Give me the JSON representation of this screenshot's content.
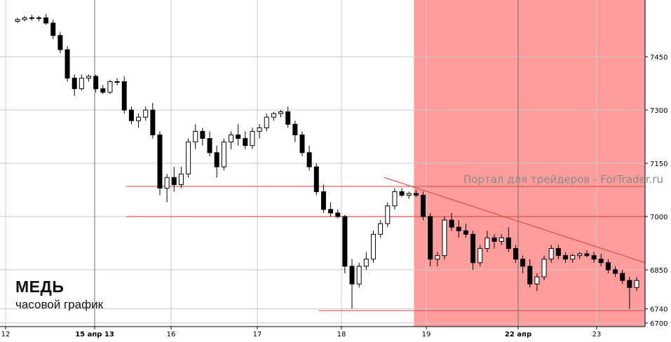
{
  "chart_data": {
    "type": "candlestick",
    "title": "МЕДЬ",
    "subtitle": "часовой график",
    "watermark": "Портал для трейдеров - ForTrader.ru",
    "ylim": [
      6690,
      7610
    ],
    "y_ticks": [
      6700,
      6740,
      6850,
      7000,
      7150,
      7300,
      7450
    ],
    "x_labels": [
      "12",
      "15 апр 13",
      "16",
      "17",
      "18",
      "19",
      "22 апр",
      "23"
    ],
    "grid": true,
    "colors": {
      "grid": "#c8c8c8",
      "major_grid": "#6e6e6e",
      "level_line": "#e05050",
      "shade_fill": "#ff9d9d",
      "candle": "#000000"
    },
    "levels": [
      7085,
      7000,
      6735
    ],
    "trendline": [
      [
        0,
        7110
      ],
      [
        87,
        6870
      ]
    ],
    "shade_from_bar": 56,
    "bars": [
      [
        7550,
        7560,
        7545,
        7555
      ],
      [
        7555,
        7565,
        7550,
        7560
      ],
      [
        7560,
        7568,
        7552,
        7558
      ],
      [
        7558,
        7565,
        7550,
        7560
      ],
      [
        7560,
        7570,
        7540,
        7545
      ],
      [
        7545,
        7555,
        7500,
        7510
      ],
      [
        7510,
        7520,
        7460,
        7470
      ],
      [
        7470,
        7480,
        7380,
        7390
      ],
      [
        7390,
        7400,
        7340,
        7360
      ],
      [
        7360,
        7400,
        7355,
        7390
      ],
      [
        7390,
        7400,
        7380,
        7395
      ],
      [
        7395,
        7400,
        7350,
        7360
      ],
      [
        7360,
        7370,
        7345,
        7350
      ],
      [
        7350,
        7385,
        7345,
        7380
      ],
      [
        7380,
        7390,
        7370,
        7380
      ],
      [
        7380,
        7395,
        7290,
        7300
      ],
      [
        7300,
        7310,
        7260,
        7270
      ],
      [
        7270,
        7290,
        7250,
        7280
      ],
      [
        7280,
        7310,
        7270,
        7300
      ],
      [
        7300,
        7320,
        7220,
        7230
      ],
      [
        7230,
        7240,
        7060,
        7080
      ],
      [
        7080,
        7120,
        7040,
        7110
      ],
      [
        7110,
        7140,
        7070,
        7090
      ],
      [
        7090,
        7140,
        7080,
        7120
      ],
      [
        7120,
        7220,
        7110,
        7210
      ],
      [
        7210,
        7260,
        7190,
        7240
      ],
      [
        7240,
        7250,
        7200,
        7220
      ],
      [
        7220,
        7240,
        7170,
        7180
      ],
      [
        7180,
        7200,
        7110,
        7140
      ],
      [
        7140,
        7220,
        7130,
        7210
      ],
      [
        7210,
        7240,
        7190,
        7230
      ],
      [
        7230,
        7260,
        7200,
        7220
      ],
      [
        7220,
        7240,
        7190,
        7200
      ],
      [
        7200,
        7250,
        7190,
        7240
      ],
      [
        7240,
        7260,
        7220,
        7250
      ],
      [
        7250,
        7290,
        7240,
        7280
      ],
      [
        7280,
        7295,
        7270,
        7290
      ],
      [
        7290,
        7300,
        7280,
        7295
      ],
      [
        7295,
        7310,
        7250,
        7260
      ],
      [
        7260,
        7270,
        7210,
        7230
      ],
      [
        7230,
        7240,
        7170,
        7180
      ],
      [
        7180,
        7200,
        7130,
        7140
      ],
      [
        7140,
        7150,
        7060,
        7070
      ],
      [
        7070,
        7090,
        7010,
        7020
      ],
      [
        7020,
        7040,
        7000,
        7010
      ],
      [
        7010,
        7020,
        6995,
        7000
      ],
      [
        7000,
        7005,
        6840,
        6860
      ],
      [
        6860,
        6880,
        6740,
        6810
      ],
      [
        6810,
        6870,
        6800,
        6860
      ],
      [
        6860,
        6900,
        6850,
        6880
      ],
      [
        6880,
        6960,
        6870,
        6950
      ],
      [
        6950,
        6990,
        6940,
        6980
      ],
      [
        6980,
        7040,
        6970,
        7030
      ],
      [
        7030,
        7080,
        7020,
        7070
      ],
      [
        7070,
        7080,
        7055,
        7060
      ],
      [
        7060,
        7070,
        7050,
        7065
      ],
      [
        7065,
        7075,
        7055,
        7060
      ],
      [
        7060,
        7070,
        6990,
        7000
      ],
      [
        7000,
        7010,
        6860,
        6880
      ],
      [
        6880,
        6900,
        6860,
        6890
      ],
      [
        6890,
        7000,
        6880,
        6990
      ],
      [
        6990,
        7010,
        6960,
        6970
      ],
      [
        6970,
        6990,
        6940,
        6960
      ],
      [
        6960,
        6980,
        6940,
        6950
      ],
      [
        6950,
        6960,
        6850,
        6870
      ],
      [
        6870,
        6920,
        6860,
        6910
      ],
      [
        6910,
        6960,
        6900,
        6940
      ],
      [
        6940,
        6950,
        6910,
        6930
      ],
      [
        6930,
        6950,
        6920,
        6940
      ],
      [
        6940,
        6970,
        6900,
        6910
      ],
      [
        6910,
        6920,
        6870,
        6880
      ],
      [
        6880,
        6890,
        6840,
        6860
      ],
      [
        6860,
        6880,
        6800,
        6810
      ],
      [
        6810,
        6840,
        6790,
        6830
      ],
      [
        6830,
        6890,
        6820,
        6880
      ],
      [
        6880,
        6920,
        6870,
        6910
      ],
      [
        6910,
        6920,
        6880,
        6890
      ],
      [
        6890,
        6900,
        6870,
        6880
      ],
      [
        6880,
        6895,
        6870,
        6890
      ],
      [
        6890,
        6900,
        6880,
        6895
      ],
      [
        6895,
        6905,
        6885,
        6890
      ],
      [
        6890,
        6900,
        6870,
        6880
      ],
      [
        6880,
        6895,
        6860,
        6870
      ],
      [
        6870,
        6880,
        6840,
        6850
      ],
      [
        6850,
        6860,
        6830,
        6840
      ],
      [
        6840,
        6850,
        6810,
        6820
      ],
      [
        6820,
        6830,
        6740,
        6800
      ],
      [
        6800,
        6830,
        6790,
        6820
      ]
    ]
  }
}
